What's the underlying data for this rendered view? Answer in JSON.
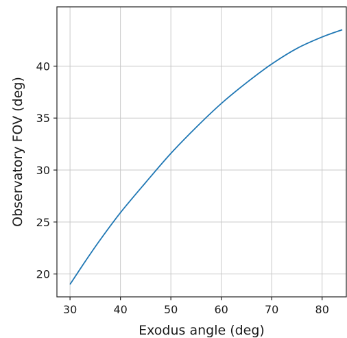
{
  "chart_data": {
    "type": "line",
    "title": "",
    "xlabel": "Exodus angle (deg)",
    "ylabel": "Observatory FOV (deg)",
    "xlim": [
      27.4,
      84.8
    ],
    "ylim": [
      17.8,
      45.7
    ],
    "x_ticks": [
      30,
      40,
      50,
      60,
      70,
      80
    ],
    "y_ticks": [
      20,
      25,
      30,
      35,
      40
    ],
    "x_tick_labels": [
      "30",
      "40",
      "50",
      "60",
      "70",
      "80"
    ],
    "y_tick_labels": [
      "20",
      "25",
      "30",
      "35",
      "40"
    ],
    "grid": true,
    "legend": "none",
    "series": [
      {
        "color": "#1f77b4",
        "x": [
          30,
          33,
          36,
          40,
          45,
          50,
          55,
          60,
          65,
          70,
          75,
          80,
          84
        ],
        "y": [
          19.0,
          21.2,
          23.3,
          25.9,
          28.8,
          31.6,
          34.1,
          36.4,
          38.4,
          40.2,
          41.7,
          42.8,
          43.5
        ]
      }
    ]
  }
}
